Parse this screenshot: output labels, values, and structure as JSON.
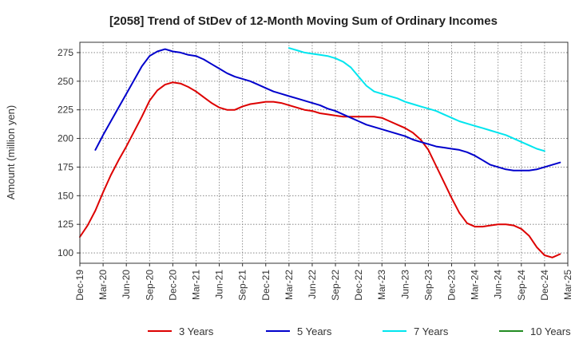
{
  "chart_data": {
    "type": "line",
    "title": "[2058]  Trend of StDev of 12-Month Moving Sum of Ordinary Incomes",
    "xlabel": "",
    "ylabel": "Amount (million yen)",
    "x_ticks": [
      "Dec-19",
      "Mar-20",
      "Jun-20",
      "Sep-20",
      "Dec-20",
      "Mar-21",
      "Jun-21",
      "Sep-21",
      "Dec-21",
      "Mar-22",
      "Jun-22",
      "Sep-22",
      "Dec-22",
      "Mar-23",
      "Jun-23",
      "Sep-23",
      "Dec-23",
      "Mar-24",
      "Jun-24",
      "Sep-24",
      "Dec-24",
      "Mar-25"
    ],
    "y_ticks": [
      100,
      125,
      150,
      175,
      200,
      225,
      250,
      275
    ],
    "xlim": [
      0,
      63
    ],
    "ylim": [
      91,
      284
    ],
    "grid": true,
    "legend_position": "bottom",
    "x_unit_note": "x values are month offsets from Dec-19",
    "series": [
      {
        "name": "3 Years",
        "color": "#dd0000",
        "points": [
          [
            0,
            114
          ],
          [
            1,
            124
          ],
          [
            2,
            137
          ],
          [
            3,
            153
          ],
          [
            4,
            168
          ],
          [
            5,
            181
          ],
          [
            6,
            193
          ],
          [
            7,
            206
          ],
          [
            8,
            219
          ],
          [
            9,
            233
          ],
          [
            10,
            242
          ],
          [
            11,
            247
          ],
          [
            12,
            249
          ],
          [
            13,
            248
          ],
          [
            14,
            245
          ],
          [
            15,
            241
          ],
          [
            16,
            236
          ],
          [
            17,
            231
          ],
          [
            18,
            227
          ],
          [
            19,
            225
          ],
          [
            20,
            225
          ],
          [
            21,
            228
          ],
          [
            22,
            230
          ],
          [
            23,
            231
          ],
          [
            24,
            232
          ],
          [
            25,
            232
          ],
          [
            26,
            231
          ],
          [
            27,
            229
          ],
          [
            28,
            227
          ],
          [
            29,
            225
          ],
          [
            30,
            224
          ],
          [
            31,
            222
          ],
          [
            32,
            221
          ],
          [
            33,
            220
          ],
          [
            34,
            219
          ],
          [
            35,
            219
          ],
          [
            36,
            219
          ],
          [
            37,
            219
          ],
          [
            38,
            219
          ],
          [
            39,
            218
          ],
          [
            40,
            215
          ],
          [
            41,
            212
          ],
          [
            42,
            209
          ],
          [
            43,
            205
          ],
          [
            44,
            199
          ],
          [
            45,
            190
          ],
          [
            46,
            176
          ],
          [
            47,
            162
          ],
          [
            48,
            148
          ],
          [
            49,
            135
          ],
          [
            50,
            126
          ],
          [
            51,
            123
          ],
          [
            52,
            123
          ],
          [
            53,
            124
          ],
          [
            54,
            125
          ],
          [
            55,
            125
          ],
          [
            56,
            124
          ],
          [
            57,
            121
          ],
          [
            58,
            115
          ],
          [
            59,
            105
          ],
          [
            60,
            98
          ],
          [
            61,
            96
          ],
          [
            62,
            99
          ]
        ]
      },
      {
        "name": "5 Years",
        "color": "#0000cc",
        "points": [
          [
            2,
            190
          ],
          [
            3,
            203
          ],
          [
            4,
            215
          ],
          [
            5,
            227
          ],
          [
            6,
            239
          ],
          [
            7,
            251
          ],
          [
            8,
            263
          ],
          [
            9,
            272
          ],
          [
            10,
            276
          ],
          [
            11,
            278
          ],
          [
            12,
            276
          ],
          [
            13,
            275
          ],
          [
            14,
            273
          ],
          [
            15,
            272
          ],
          [
            16,
            269
          ],
          [
            17,
            265
          ],
          [
            18,
            261
          ],
          [
            19,
            257
          ],
          [
            20,
            254
          ],
          [
            21,
            252
          ],
          [
            22,
            250
          ],
          [
            23,
            247
          ],
          [
            24,
            244
          ],
          [
            25,
            241
          ],
          [
            26,
            239
          ],
          [
            27,
            237
          ],
          [
            28,
            235
          ],
          [
            29,
            233
          ],
          [
            30,
            231
          ],
          [
            31,
            229
          ],
          [
            32,
            226
          ],
          [
            33,
            224
          ],
          [
            34,
            221
          ],
          [
            35,
            218
          ],
          [
            36,
            215
          ],
          [
            37,
            212
          ],
          [
            38,
            210
          ],
          [
            39,
            208
          ],
          [
            40,
            206
          ],
          [
            41,
            204
          ],
          [
            42,
            202
          ],
          [
            43,
            199
          ],
          [
            44,
            197
          ],
          [
            45,
            195
          ],
          [
            46,
            193
          ],
          [
            47,
            192
          ],
          [
            48,
            191
          ],
          [
            49,
            190
          ],
          [
            50,
            188
          ],
          [
            51,
            185
          ],
          [
            52,
            181
          ],
          [
            53,
            177
          ],
          [
            54,
            175
          ],
          [
            55,
            173
          ],
          [
            56,
            172
          ],
          [
            57,
            172
          ],
          [
            58,
            172
          ],
          [
            59,
            173
          ],
          [
            60,
            175
          ],
          [
            61,
            177
          ],
          [
            62,
            179
          ]
        ]
      },
      {
        "name": "7 Years",
        "color": "#00e5ee",
        "points": [
          [
            27,
            279
          ],
          [
            28,
            277
          ],
          [
            29,
            275
          ],
          [
            30,
            274
          ],
          [
            31,
            273
          ],
          [
            32,
            272
          ],
          [
            33,
            270
          ],
          [
            34,
            267
          ],
          [
            35,
            262
          ],
          [
            36,
            254
          ],
          [
            37,
            246
          ],
          [
            38,
            241
          ],
          [
            39,
            239
          ],
          [
            40,
            237
          ],
          [
            41,
            235
          ],
          [
            42,
            232
          ],
          [
            43,
            230
          ],
          [
            44,
            228
          ],
          [
            45,
            226
          ],
          [
            46,
            224
          ],
          [
            47,
            221
          ],
          [
            48,
            218
          ],
          [
            49,
            215
          ],
          [
            50,
            213
          ],
          [
            51,
            211
          ],
          [
            52,
            209
          ],
          [
            53,
            207
          ],
          [
            54,
            205
          ],
          [
            55,
            203
          ],
          [
            56,
            200
          ],
          [
            57,
            197
          ],
          [
            58,
            194
          ],
          [
            59,
            191
          ],
          [
            60,
            189
          ]
        ]
      },
      {
        "name": "10 Years",
        "color": "#228b22",
        "points": []
      }
    ]
  }
}
